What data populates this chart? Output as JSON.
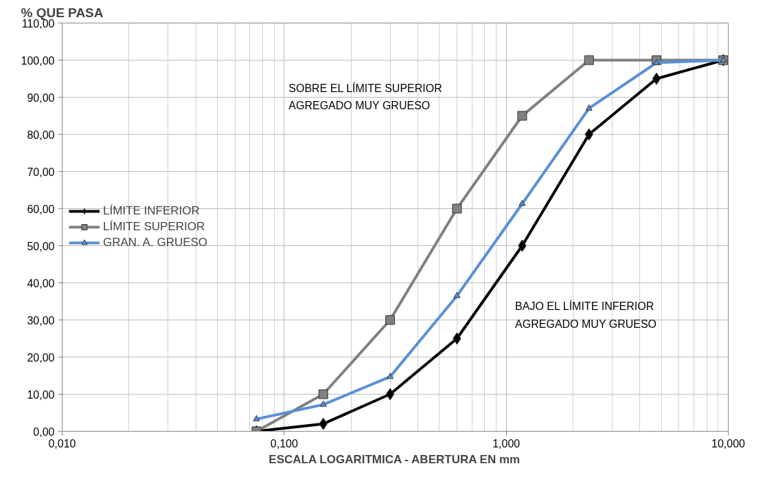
{
  "chart_data": {
    "type": "line",
    "ylabel": "% QUE PASA",
    "xlabel": "ESCALA LOGARITMICA - ABERTURA EN mm",
    "x": [
      0.075,
      0.15,
      0.3,
      0.6,
      1.18,
      2.36,
      4.75,
      9.5
    ],
    "series": [
      {
        "name": "LÍMITE INFERIOR",
        "color": "#000000",
        "marker": "diamond",
        "values": [
          0,
          2,
          10,
          25,
          50,
          80,
          95,
          100
        ]
      },
      {
        "name": "LÍMITE SUPERIOR",
        "color": "#808080",
        "marker": "square",
        "values": [
          0,
          10,
          30,
          60,
          85,
          100,
          100,
          100
        ]
      },
      {
        "name": "GRAN. A. GRUESO",
        "color": "#5b8fd6",
        "marker": "triangle",
        "values": [
          3.3,
          7.2,
          14.7,
          36.5,
          61.3,
          87,
          99.3,
          100
        ]
      }
    ],
    "log": "x",
    "xlim": [
      0.01,
      10
    ],
    "xticks": [
      {
        "value": 0.01,
        "label": "0,010"
      },
      {
        "value": 0.1,
        "label": "0,100"
      },
      {
        "value": 1,
        "label": "1,000"
      },
      {
        "value": 10,
        "label": "10,000"
      }
    ],
    "ylim": [
      0,
      110
    ],
    "yticks": [
      {
        "value": 0,
        "label": "0,00"
      },
      {
        "value": 10,
        "label": "10,00"
      },
      {
        "value": 20,
        "label": "20,00"
      },
      {
        "value": 30,
        "label": "30,00"
      },
      {
        "value": 40,
        "label": "40,00"
      },
      {
        "value": 50,
        "label": "50,00"
      },
      {
        "value": 60,
        "label": "60,00"
      },
      {
        "value": 70,
        "label": "70,00"
      },
      {
        "value": 80,
        "label": "80,00"
      },
      {
        "value": 90,
        "label": "90,00"
      },
      {
        "value": 100,
        "label": "100,00"
      },
      {
        "value": 110,
        "label": "110,00"
      }
    ],
    "grid": true,
    "legend": "left",
    "line_style": "solid",
    "annotations": [
      "SOBRE EL LÍMITE SUPERIOR\nAGREGADO MUY GRUESO",
      "BAJO EL LÍMITE INFERIOR\nAGREGADO MUY GRUESO"
    ]
  }
}
